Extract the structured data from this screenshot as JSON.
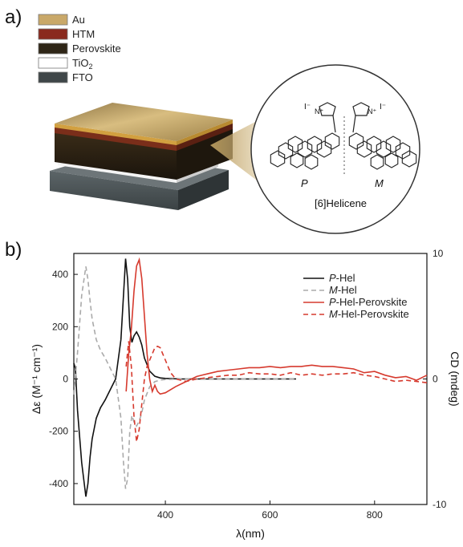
{
  "panel_a": {
    "label": "a)",
    "layers": [
      {
        "name": "Au",
        "color": "#c9a869"
      },
      {
        "name": "HTM",
        "color": "#8a2a1e"
      },
      {
        "name": "Perovskite",
        "color": "#2e2516"
      },
      {
        "name": "TiO",
        "sub": "2",
        "color": "#ffffff"
      },
      {
        "name": "FTO",
        "color": "#3f4648"
      }
    ],
    "molecule": {
      "enantiomer_p": "P",
      "enantiomer_m": "M",
      "caption": "[6]Helicene",
      "charge_left": "I⁻",
      "charge_right": "I⁻",
      "nitrogen": "N",
      "nitrogen_plus": "N⁺"
    }
  },
  "panel_b": {
    "label": "b)"
  },
  "chart_data": {
    "type": "line",
    "xlabel": "λ(nm)",
    "ylabel": "Δε (M⁻¹ cm⁻¹)",
    "y2label": "CD (mdeg)",
    "xlim": [
      225,
      900
    ],
    "ylim": [
      -480,
      480
    ],
    "y2lim": [
      -10,
      10
    ],
    "xticks": [
      "400",
      "600",
      "800"
    ],
    "xtick_values": [
      400,
      600,
      800
    ],
    "yticks": [
      "400",
      "200",
      "0",
      "-200",
      "-400"
    ],
    "ytick_values": [
      400,
      200,
      0,
      -200,
      -400
    ],
    "y2ticks": [
      "10",
      "0",
      "-10"
    ],
    "y2tick_values": [
      10,
      0,
      -10
    ],
    "legend_position": "top-right",
    "series": [
      {
        "name_italic": "P",
        "name_rest": "-Hel",
        "color": "#111111",
        "dash": "solid",
        "axis": "left",
        "x": [
          225,
          228,
          232,
          240,
          248,
          252,
          256,
          260,
          268,
          276,
          285,
          295,
          305,
          315,
          320,
          324,
          328,
          332,
          336,
          340,
          345,
          350,
          355,
          360,
          370,
          380,
          390,
          400,
          430,
          500,
          600,
          650
        ],
        "y": [
          60,
          40,
          -120,
          -320,
          -450,
          -400,
          -300,
          -230,
          -150,
          -110,
          -80,
          -40,
          0,
          150,
          320,
          460,
          380,
          200,
          140,
          165,
          180,
          160,
          130,
          80,
          30,
          10,
          4,
          2,
          0,
          0,
          0,
          0
        ]
      },
      {
        "name_italic": "M",
        "name_rest": "-Hel",
        "color": "#aaaaaa",
        "dash": "dashed",
        "axis": "left",
        "x": [
          225,
          232,
          240,
          248,
          252,
          256,
          260,
          268,
          276,
          285,
          295,
          305,
          315,
          320,
          324,
          328,
          332,
          336,
          340,
          345,
          350,
          355,
          360,
          370,
          380,
          390,
          400,
          430,
          500,
          600,
          650
        ],
        "y": [
          -60,
          100,
          320,
          430,
          380,
          300,
          230,
          150,
          110,
          80,
          40,
          0,
          -150,
          -320,
          -420,
          -380,
          -200,
          -140,
          -165,
          -180,
          -160,
          -130,
          -80,
          -30,
          -10,
          -4,
          -2,
          0,
          0,
          0,
          0
        ]
      },
      {
        "name_italic": "P",
        "name_rest": "-Hel-Perovskite",
        "color": "#d63a2e",
        "dash": "solid",
        "axis": "right",
        "x": [
          325,
          330,
          335,
          340,
          345,
          350,
          355,
          360,
          365,
          370,
          375,
          380,
          385,
          390,
          400,
          420,
          440,
          460,
          480,
          500,
          520,
          540,
          560,
          580,
          600,
          620,
          640,
          660,
          680,
          700,
          720,
          740,
          760,
          780,
          800,
          820,
          840,
          860,
          880,
          900
        ],
        "y": [
          -1,
          2,
          4,
          7,
          9,
          9.5,
          8,
          5,
          2,
          0,
          -1,
          -0.5,
          -1,
          -1.2,
          -1.1,
          -0.6,
          -0.2,
          0.2,
          0.4,
          0.6,
          0.7,
          0.8,
          0.9,
          0.9,
          1.0,
          0.9,
          1.0,
          1.0,
          1.1,
          1.0,
          1.0,
          0.9,
          0.8,
          0.5,
          0.6,
          0.3,
          0.1,
          0.2,
          -0.1,
          0.3
        ]
      },
      {
        "name_italic": "M",
        "name_rest": "-Hel-Perovskite",
        "color": "#d63a2e",
        "dash": "dashed",
        "axis": "right",
        "x": [
          325,
          330,
          335,
          340,
          345,
          350,
          355,
          360,
          365,
          370,
          375,
          380,
          385,
          390,
          395,
          400,
          410,
          420,
          440,
          460,
          480,
          500,
          520,
          540,
          560,
          580,
          600,
          620,
          640,
          660,
          680,
          700,
          720,
          740,
          760,
          780,
          800,
          820,
          840,
          860,
          880,
          900
        ],
        "y": [
          1,
          3,
          1,
          -3,
          -5,
          -4,
          -2,
          0,
          1,
          1.5,
          2.0,
          2.5,
          2.6,
          2.5,
          2.0,
          1.5,
          0.5,
          0,
          -0.2,
          0,
          0.1,
          0.2,
          0.3,
          0.3,
          0.5,
          0.4,
          0.4,
          0.3,
          0.5,
          0.3,
          0.4,
          0.3,
          0.4,
          0.4,
          0.5,
          0.3,
          0.2,
          0,
          -0.2,
          -0.1,
          -0.2,
          -0.3
        ]
      }
    ]
  }
}
